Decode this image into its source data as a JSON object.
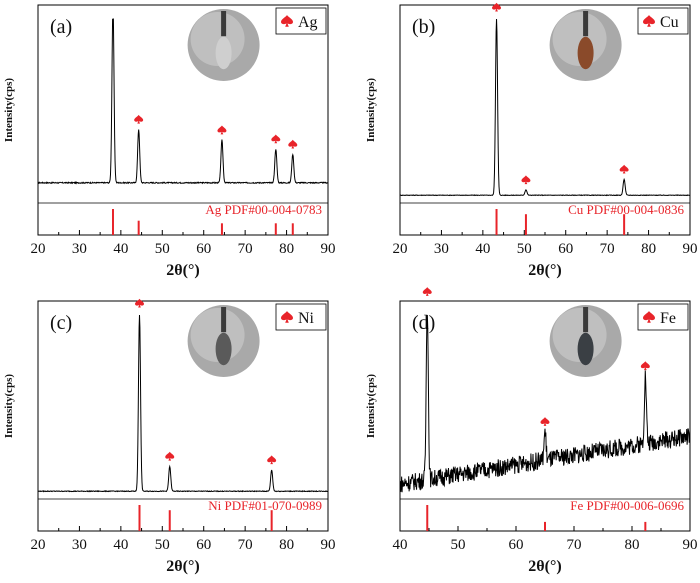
{
  "chart_data": [
    {
      "type": "line",
      "panel_label": "(a)",
      "element": "Ag",
      "title": "",
      "xlabel": "2θ(°)",
      "ylabel": "Intensity(cps)",
      "xlim": [
        20,
        90
      ],
      "xticks": [
        "20",
        "30",
        "40",
        "50",
        "60",
        "70",
        "80",
        "90"
      ],
      "ylim": [
        0,
        100
      ],
      "baseline": 8,
      "noise": 0.3,
      "peaks": [
        {
          "x": 38.1,
          "height": 100
        },
        {
          "x": 44.3,
          "height": 30
        },
        {
          "x": 64.4,
          "height": 24
        },
        {
          "x": 77.4,
          "height": 19
        },
        {
          "x": 81.5,
          "height": 16
        }
      ],
      "legend": "Ag",
      "reference_label": "Ag  PDF#00-004-0783",
      "reference_lines": [
        38.1,
        44.3,
        64.4,
        77.4,
        81.5
      ],
      "reference_heights": [
        1.0,
        0.55,
        0.45,
        0.45,
        0.45
      ],
      "inset": "Ag sample photo",
      "inset_color": "#cfcfcf"
    },
    {
      "type": "line",
      "panel_label": "(b)",
      "element": "Cu",
      "title": "",
      "xlabel": "2θ(°)",
      "ylabel": "Intensity(cps)",
      "xlim": [
        20,
        90
      ],
      "xticks": [
        "20",
        "30",
        "40",
        "50",
        "60",
        "70",
        "80",
        "90"
      ],
      "ylim": [
        0,
        100
      ],
      "baseline": 1,
      "noise": 0.15,
      "peaks": [
        {
          "x": 43.3,
          "height": 100
        },
        {
          "x": 50.4,
          "height": 3
        },
        {
          "x": 74.1,
          "height": 9
        }
      ],
      "legend": "Cu",
      "reference_label": "Cu  PDF#00-004-0836",
      "reference_lines": [
        43.3,
        50.4,
        74.1
      ],
      "reference_heights": [
        1.0,
        0.8,
        0.8
      ],
      "inset": "Cu sample photo",
      "inset_color": "#8a4a2a"
    },
    {
      "type": "line",
      "panel_label": "(c)",
      "element": "Ni",
      "title": "",
      "xlabel": "2θ(°)",
      "ylabel": "Intensity(cps)",
      "xlim": [
        20,
        90
      ],
      "xticks": [
        "20",
        "30",
        "40",
        "50",
        "60",
        "70",
        "80",
        "90"
      ],
      "ylim": [
        0,
        100
      ],
      "baseline": 1,
      "noise": 0.2,
      "peaks": [
        {
          "x": 44.5,
          "height": 100
        },
        {
          "x": 51.8,
          "height": 14
        },
        {
          "x": 76.4,
          "height": 12
        }
      ],
      "legend": "Ni",
      "reference_label": "Ni  PDF#01-070-0989",
      "reference_lines": [
        44.5,
        51.8,
        76.4
      ],
      "reference_heights": [
        1.0,
        0.8,
        0.8
      ],
      "inset": "Ni sample photo",
      "inset_color": "#5a5a5a"
    },
    {
      "type": "line",
      "panel_label": "(d)",
      "element": "Fe",
      "title": "",
      "xlabel": "2θ(°)",
      "ylabel": "Intensity(cps)",
      "xlim": [
        40,
        90
      ],
      "xticks": [
        "40",
        "50",
        "60",
        "70",
        "80",
        "90"
      ],
      "ylim": [
        0,
        100
      ],
      "baseline": 5,
      "baseline_end": 32,
      "noise": 5,
      "peaks": [
        {
          "x": 44.7,
          "height": 100
        },
        {
          "x": 65.0,
          "height": 16
        },
        {
          "x": 82.3,
          "height": 38
        }
      ],
      "legend": "Fe",
      "reference_label": "Fe  PDF#00-006-0696",
      "reference_lines": [
        44.7,
        65.0,
        82.3
      ],
      "reference_heights": [
        1.0,
        0.35,
        0.35
      ],
      "inset": "Fe sample photo",
      "inset_color": "#3a3f44"
    }
  ],
  "colors": {
    "marker": "#e8242a",
    "reference": "#e8242a",
    "line": "#000000",
    "text_red": "#e8242a"
  }
}
